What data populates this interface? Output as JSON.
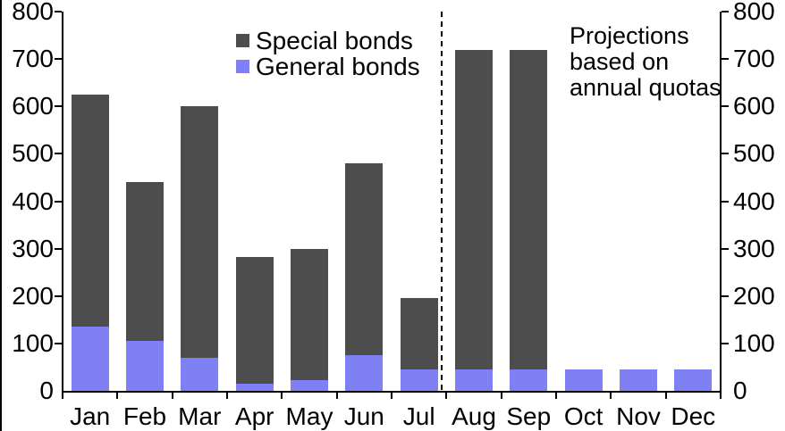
{
  "chart_data": {
    "type": "bar",
    "stacked": true,
    "title": "",
    "xlabel": "",
    "ylabel": "",
    "categories": [
      "Jan",
      "Feb",
      "Mar",
      "Apr",
      "May",
      "Jun",
      "Jul",
      "Aug",
      "Sep",
      "Oct",
      "Nov",
      "Dec"
    ],
    "series": [
      {
        "name": "General bonds",
        "color": "#8080F5",
        "values": [
          135,
          105,
          70,
          15,
          23,
          76,
          46,
          46,
          46,
          46,
          46,
          46
        ]
      },
      {
        "name": "Special bonds",
        "color": "#4D4D4D",
        "values": [
          490,
          335,
          530,
          267,
          277,
          404,
          150,
          674,
          674,
          0,
          0,
          0
        ]
      }
    ],
    "totals": [
      625,
      440,
      600,
      282,
      300,
      480,
      196,
      720,
      720,
      46,
      46,
      46
    ],
    "ylim": [
      0,
      800
    ],
    "yticks": [
      0,
      100,
      200,
      300,
      400,
      500,
      600,
      700,
      800
    ],
    "dual_axis": true,
    "grid": false,
    "legend_position": "top-center",
    "divider": {
      "style": "dashed",
      "between": [
        "Jul",
        "Aug"
      ]
    },
    "annotation": "Projections based on annual quotas"
  },
  "legend": {
    "items": [
      {
        "label": "Special bonds",
        "color": "#4D4D4D"
      },
      {
        "label": "General bonds",
        "color": "#8080F5"
      }
    ]
  },
  "annotation": {
    "lines": [
      "Projections",
      "based on",
      "annual quotas"
    ]
  }
}
